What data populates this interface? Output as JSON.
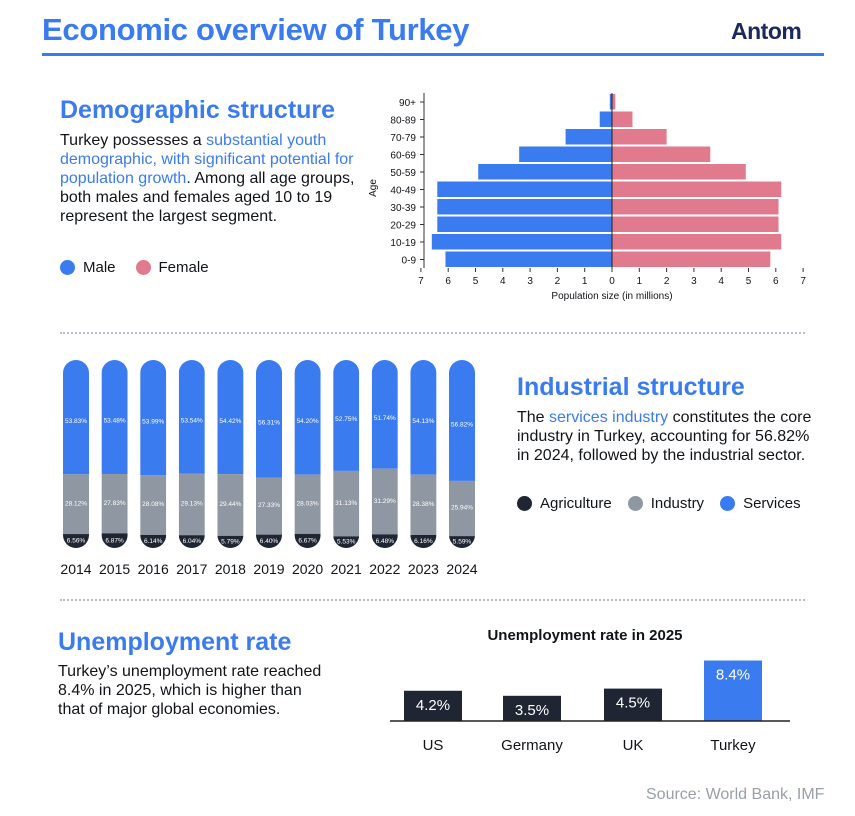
{
  "header": {
    "title": "Economic overview of Turkey",
    "brand": "Antom"
  },
  "colors": {
    "accent": "#3a7bf0",
    "male": "#3a7bf0",
    "female": "#e07a8c",
    "agriculture": "#1f2533",
    "industry": "#8e97a2",
    "services": "#3a7bf0",
    "bar_dark": "#1f2533"
  },
  "demographic": {
    "title": "Demographic structure",
    "text_pre": "Turkey possesses a ",
    "text_highlight": "substantial youth demographic, with significant potential for population growth",
    "text_post": ". Among all age groups, both males and females aged 10 to 19 represent the largest segment.",
    "legend": [
      {
        "label": "Male",
        "color": "#3a7bf0"
      },
      {
        "label": "Female",
        "color": "#e07a8c"
      }
    ]
  },
  "industrial": {
    "title": "Industrial structure",
    "text_pre": "The ",
    "text_highlight": "services industry",
    "text_post": " constitutes the core industry in Turkey, accounting for 56.82% in 2024, followed by the industrial sector.",
    "legend": [
      {
        "label": "Agriculture",
        "color": "#1f2533"
      },
      {
        "label": "Industry",
        "color": "#8e97a2"
      },
      {
        "label": "Services",
        "color": "#3a7bf0"
      }
    ]
  },
  "unemployment": {
    "title": "Unemployment rate",
    "text": "Turkey’s unemployment rate reached 8.4% in 2025, which is higher than that of major global economies."
  },
  "source": "Source: World Bank, IMF",
  "chart_data": [
    {
      "type": "bar",
      "orientation": "horizontal",
      "categories": [
        "0-9",
        "10-19",
        "20-29",
        "30-39",
        "40-49",
        "50-59",
        "60-69",
        "70-79",
        "80-89",
        "90+"
      ],
      "series": [
        {
          "name": "Male",
          "values": [
            6.1,
            6.6,
            6.4,
            6.4,
            6.4,
            4.9,
            3.4,
            1.7,
            0.45,
            0.08
          ]
        },
        {
          "name": "Female",
          "values": [
            5.8,
            6.2,
            6.1,
            6.1,
            6.2,
            4.9,
            3.6,
            2.0,
            0.75,
            0.12
          ]
        }
      ],
      "xlabel": "Population size (in millions)",
      "ylabel": "Age",
      "xticks": [
        "7",
        "6",
        "5",
        "4",
        "3",
        "2",
        "1",
        "0",
        "1",
        "2",
        "3",
        "4",
        "5",
        "6",
        "7"
      ],
      "xlim": [
        -7,
        7
      ]
    },
    {
      "type": "bar",
      "stacked": true,
      "categories": [
        "2014",
        "2015",
        "2016",
        "2017",
        "2018",
        "2019",
        "2020",
        "2021",
        "2022",
        "2023",
        "2024"
      ],
      "series": [
        {
          "name": "Agriculture",
          "values": [
            6.56,
            6.87,
            6.14,
            6.04,
            5.79,
            6.4,
            6.67,
            5.53,
            6.48,
            6.16,
            5.59
          ],
          "labels": [
            "6.56%",
            "6.87%",
            "6.14%",
            "6.04%",
            "5.79%",
            "6.40%",
            "6.67%",
            "5.53%",
            "6.48%",
            "6.16%",
            "5.59%"
          ]
        },
        {
          "name": "Industry",
          "values": [
            28.12,
            27.83,
            28.08,
            29.13,
            29.44,
            27.33,
            28.03,
            31.13,
            31.29,
            28.38,
            25.94
          ],
          "labels": [
            "28.12%",
            "27.83%",
            "28.08%",
            "29.13%",
            "29.44%",
            "27.33%",
            "28.03%",
            "31.13%",
            "31.29%",
            "28.38%",
            "25.94%"
          ]
        },
        {
          "name": "Services",
          "values": [
            53.83,
            53.48,
            53.99,
            53.54,
            54.42,
            56.31,
            54.2,
            52.75,
            51.74,
            54.13,
            56.82
          ],
          "labels": [
            "53.83%",
            "53.48%",
            "53.99%",
            "53.54%",
            "54.42%",
            "56.31%",
            "54.20%",
            "52.75%",
            "51.74%",
            "54.13%",
            "56.82%"
          ]
        }
      ]
    },
    {
      "type": "bar",
      "title": "Unemployment rate in 2025",
      "categories": [
        "US",
        "Germany",
        "UK",
        "Turkey"
      ],
      "values": [
        4.2,
        3.5,
        4.5,
        8.4
      ],
      "labels": [
        "4.2%",
        "3.5%",
        "4.5%",
        "8.4%"
      ]
    }
  ]
}
